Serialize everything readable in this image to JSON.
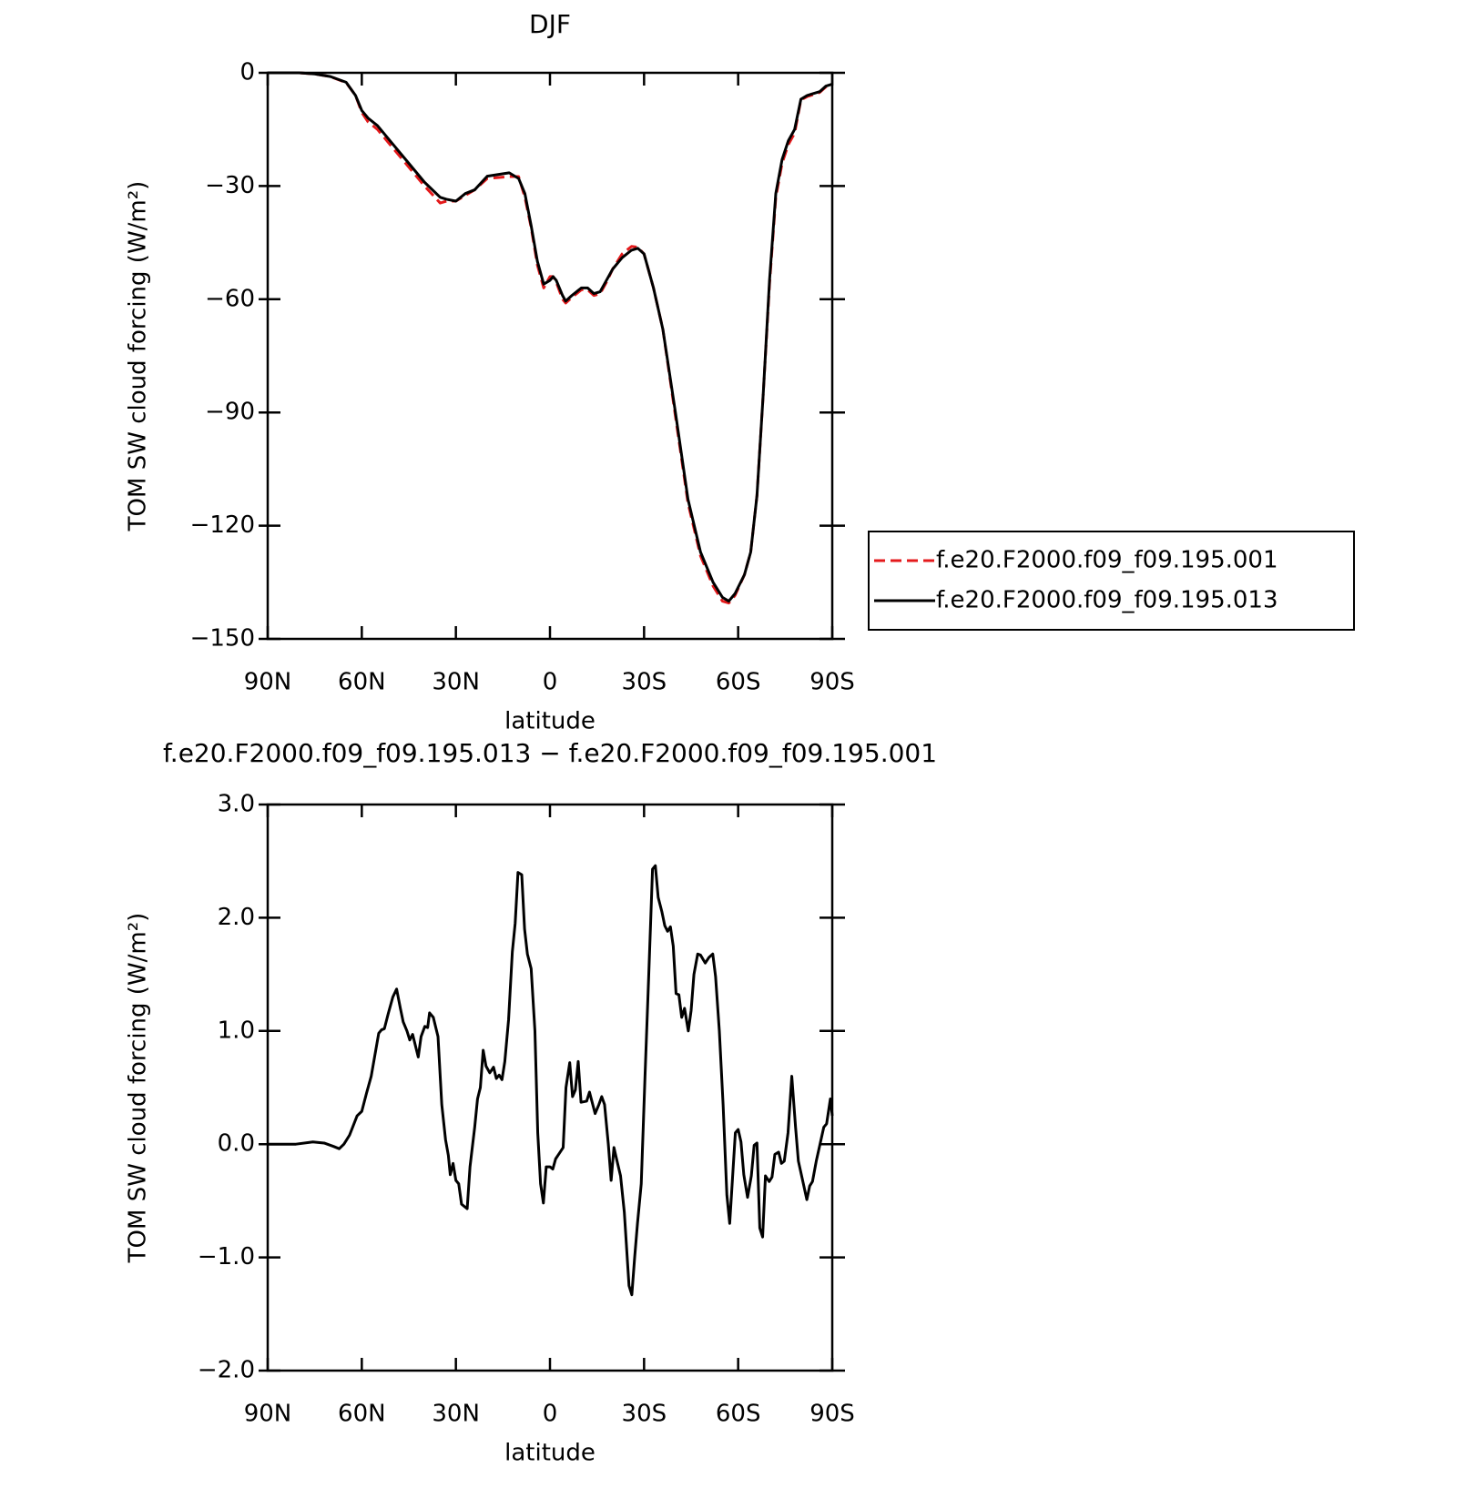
{
  "chart_data": [
    {
      "type": "line",
      "title": "DJF",
      "xlabel": "latitude",
      "ylabel": "TOM SW cloud forcing (W/m²)",
      "x": [
        90,
        80,
        75,
        70,
        65,
        62,
        60,
        58,
        55,
        50,
        45,
        40,
        35,
        33,
        30,
        27,
        24,
        20,
        17,
        13,
        10,
        8,
        6,
        4,
        2,
        0,
        -1,
        -2,
        -4,
        -5,
        -7,
        -10,
        -12,
        -14,
        -16,
        -18,
        -20,
        -23,
        -26,
        -28,
        -30,
        -33,
        -36,
        -40,
        -44,
        -48,
        -52,
        -55,
        -57,
        -59,
        -62,
        -64,
        -66,
        -68,
        -70,
        -72,
        -74,
        -76,
        -78,
        -80,
        -82,
        -86,
        -88,
        -90
      ],
      "series": [
        {
          "name": "f.e20.F2000.f09_f09.195.001",
          "color": "#e41a1c",
          "dash": true,
          "values": [
            0,
            0,
            -0.3,
            -1,
            -2.6,
            -6,
            -10.5,
            -13,
            -15,
            -20,
            -25,
            -30,
            -34.5,
            -34,
            -34,
            -32.5,
            -31,
            -28,
            -27.8,
            -27.5,
            -27.5,
            -33,
            -41,
            -51,
            -57,
            -54,
            -54,
            -55.5,
            -60,
            -61,
            -59.5,
            -57.5,
            -57.5,
            -59,
            -58.5,
            -55.5,
            -52,
            -48,
            -46,
            -46.2,
            -48,
            -57,
            -68,
            -91,
            -114,
            -128,
            -136,
            -140,
            -140.5,
            -138.5,
            -133,
            -127,
            -112,
            -85,
            -56,
            -33,
            -24,
            -19,
            -16,
            -7.2,
            -6.3,
            -5.2,
            -3.7,
            -3.1
          ]
        },
        {
          "name": "f.e20.F2000.f09_f09.195.013",
          "color": "#000000",
          "dash": false,
          "values": [
            0,
            0,
            -0.3,
            -1,
            -2.5,
            -6,
            -10,
            -12,
            -14,
            -19,
            -24,
            -29,
            -33,
            -33.5,
            -34,
            -32,
            -31,
            -27.4,
            -27,
            -26.5,
            -28,
            -32,
            -40.5,
            -50,
            -56,
            -55,
            -54,
            -55,
            -59,
            -60.5,
            -59,
            -57,
            -57,
            -58.5,
            -58,
            -55,
            -52,
            -49,
            -47,
            -46.5,
            -48,
            -57,
            -68,
            -90,
            -113,
            -127,
            -135,
            -139,
            -140,
            -138,
            -133,
            -127,
            -112,
            -85,
            -55,
            -32,
            -23,
            -18,
            -15,
            -7,
            -6,
            -5,
            -3.5,
            -3
          ]
        }
      ],
      "xlim": [
        90,
        -90
      ],
      "xticks": [
        {
          "value": 90,
          "label": "90N"
        },
        {
          "value": 60,
          "label": "60N"
        },
        {
          "value": 30,
          "label": "30N"
        },
        0,
        {
          "value": -30,
          "label": "30S"
        },
        {
          "value": -60,
          "label": "60S"
        },
        {
          "value": -90,
          "label": "90S"
        }
      ],
      "ylim": [
        -150,
        0
      ],
      "yticks": [
        0,
        {
          "value": -30,
          "label": "−30"
        },
        {
          "value": -60,
          "label": "−60"
        },
        {
          "value": -90,
          "label": "−90"
        },
        {
          "value": -120,
          "label": "−120"
        },
        {
          "value": -150,
          "label": "−150"
        }
      ],
      "legend": "right"
    },
    {
      "type": "line",
      "title": "f.e20.F2000.f09_f09.195.013 − f.e20.F2000.f09_f09.195.001",
      "xlabel": "latitude",
      "ylabel": "TOM SW cloud forcing (W/m²)",
      "x": [
        90,
        81,
        75.6,
        72,
        69,
        67.2,
        65.7,
        63.9,
        61.5,
        60,
        58.5,
        57,
        54.6,
        53.7,
        52.8,
        51.6,
        50.1,
        48.9,
        47.7,
        46.8,
        45.6,
        44.7,
        43.8,
        42,
        41.1,
        39.9,
        39,
        38.4,
        37.2,
        35.7,
        34.5,
        33.3,
        32.4,
        31.8,
        30.9,
        30,
        29.1,
        28.2,
        26.4,
        25.5,
        24,
        23.1,
        22.2,
        21.3,
        20.4,
        19.2,
        18,
        17.1,
        16.2,
        15.3,
        14.4,
        13.2,
        12,
        11.1,
        10.2,
        9,
        8.1,
        7.2,
        6,
        4.8,
        3.9,
        3,
        2.1,
        1.2,
        0,
        -0.9,
        -1.8,
        -3,
        -4.2,
        -5.1,
        -6.3,
        -7.2,
        -8.1,
        -9,
        -9.9,
        -11.7,
        -12.6,
        -14.4,
        -15.6,
        -16.5,
        -17.4,
        -18.6,
        -19.5,
        -20.4,
        -21.3,
        -22.5,
        -23.7,
        -25.2,
        -26.1,
        -27,
        -27.9,
        -29.1,
        -30.3,
        -31.5,
        -32.7,
        -33.6,
        -34.5,
        -35.7,
        -36.6,
        -37.5,
        -38.4,
        -39.3,
        -40.2,
        -41.1,
        -42,
        -42.9,
        -44.1,
        -45,
        -45.9,
        -47.1,
        -48,
        -49.5,
        -50.7,
        -51.9,
        -52.8,
        -54,
        -55.2,
        -56.4,
        -57.3,
        -58.2,
        -59.1,
        -60,
        -60.9,
        -61.8,
        -63,
        -64.2,
        -65.1,
        -66,
        -66.9,
        -67.8,
        -68.7,
        -69.9,
        -70.8,
        -71.7,
        -72.9,
        -73.8,
        -74.7,
        -75.9,
        -77.1,
        -78.3,
        -79.2,
        -80.4,
        -81.9,
        -82.8,
        -83.7,
        -84.9,
        -86.1,
        -87.3,
        -88.2,
        -89.4,
        -90
      ],
      "values": [
        0,
        0,
        0.02,
        0.01,
        -0.02,
        -0.04,
        0,
        0.08,
        0.25,
        0.29,
        0.45,
        0.6,
        0.98,
        1.01,
        1.02,
        1.15,
        1.3,
        1.37,
        1.2,
        1.08,
        1.0,
        0.92,
        0.97,
        0.77,
        0.95,
        1.04,
        1.03,
        1.16,
        1.12,
        0.95,
        0.35,
        0.04,
        -0.1,
        -0.27,
        -0.17,
        -0.32,
        -0.35,
        -0.53,
        -0.57,
        -0.2,
        0.15,
        0.4,
        0.5,
        0.83,
        0.69,
        0.63,
        0.68,
        0.58,
        0.61,
        0.57,
        0.73,
        1.1,
        1.7,
        1.95,
        2.4,
        2.38,
        1.9,
        1.68,
        1.55,
        1.0,
        0.1,
        -0.35,
        -0.52,
        -0.2,
        -0.2,
        -0.22,
        -0.13,
        -0.08,
        -0.03,
        0.5,
        0.72,
        0.42,
        0.48,
        0.73,
        0.37,
        0.38,
        0.46,
        0.27,
        0.35,
        0.42,
        0.35,
        0.0,
        -0.32,
        -0.03,
        -0.14,
        -0.28,
        -0.6,
        -1.25,
        -1.33,
        -1.0,
        -0.7,
        -0.35,
        0.6,
        1.5,
        2.43,
        2.46,
        2.18,
        2.05,
        1.93,
        1.88,
        1.92,
        1.75,
        1.33,
        1.32,
        1.12,
        1.2,
        1.0,
        1.18,
        1.5,
        1.68,
        1.67,
        1.6,
        1.65,
        1.68,
        1.48,
        1.0,
        0.35,
        -0.45,
        -0.7,
        -0.3,
        0.1,
        0.13,
        0.02,
        -0.27,
        -0.47,
        -0.28,
        -0.01,
        0.01,
        -0.74,
        -0.82,
        -0.28,
        -0.33,
        -0.29,
        -0.09,
        -0.07,
        -0.17,
        -0.15,
        0.1,
        0.6,
        0.15,
        -0.15,
        -0.3,
        -0.49,
        -0.37,
        -0.33,
        -0.15,
        0.0,
        0.15,
        0.18,
        0.4,
        0.25
      ],
      "color": "#000000",
      "xlim": [
        90,
        -90
      ],
      "xticks": [
        {
          "value": 90,
          "label": "90N"
        },
        {
          "value": 60,
          "label": "60N"
        },
        {
          "value": 30,
          "label": "30N"
        },
        0,
        {
          "value": -30,
          "label": "30S"
        },
        {
          "value": -60,
          "label": "60S"
        },
        {
          "value": -90,
          "label": "90S"
        }
      ],
      "ylim": [
        -2,
        3
      ],
      "yticks": [
        {
          "value": 3,
          "label": "3.0"
        },
        {
          "value": 2,
          "label": "2.0"
        },
        {
          "value": 1,
          "label": "1.0"
        },
        {
          "value": 0,
          "label": "0.0"
        },
        {
          "value": -1,
          "label": "−1.0"
        },
        {
          "value": -2,
          "label": "−2.0"
        }
      ]
    }
  ]
}
